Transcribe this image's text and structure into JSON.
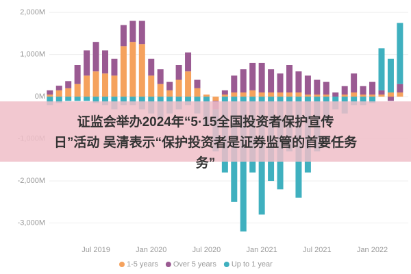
{
  "chart_data": {
    "type": "stacked-bar",
    "categories": [
      null,
      null,
      null,
      null,
      null,
      "Jul 2019",
      null,
      null,
      null,
      null,
      null,
      "Jan 2020",
      null,
      null,
      null,
      null,
      null,
      "Jul 2020",
      null,
      null,
      null,
      null,
      null,
      "Jan 2021",
      null,
      null,
      null,
      null,
      null,
      "Jul 2021",
      null,
      null,
      null,
      null,
      null,
      "Jan 2022",
      null,
      null,
      null
    ],
    "series": [
      {
        "name": "1-5 years",
        "color": "#f5a25d",
        "values": [
          50,
          150,
          200,
          300,
          500,
          600,
          550,
          500,
          1200,
          1300,
          1250,
          500,
          300,
          150,
          400,
          600,
          200,
          50,
          -100,
          50,
          100,
          100,
          150,
          100,
          100,
          100,
          100,
          100,
          50,
          50,
          50,
          0,
          50,
          100,
          50,
          50,
          50,
          100,
          100
        ]
      },
      {
        "name": "Over 5 years",
        "color": "#9a5a92",
        "values": [
          100,
          110,
          170,
          450,
          600,
          700,
          550,
          400,
          500,
          500,
          550,
          400,
          350,
          200,
          350,
          450,
          200,
          0,
          -200,
          100,
          400,
          550,
          650,
          700,
          550,
          450,
          650,
          500,
          450,
          350,
          300,
          100,
          200,
          450,
          200,
          300,
          100,
          -100,
          200
        ]
      },
      {
        "name": "Up to 1 year",
        "color": "#3fb0bf",
        "values": [
          -200,
          -150,
          -100,
          -100,
          -100,
          -150,
          -200,
          -300,
          -200,
          -200,
          -300,
          -400,
          -500,
          -400,
          -300,
          -200,
          -400,
          -700,
          -1000,
          -1800,
          -2500,
          -3200,
          -1800,
          -2800,
          -2000,
          -2200,
          -1300,
          -2400,
          -1800,
          -1300,
          -600,
          -300,
          -400,
          -200,
          -200,
          -150,
          1000,
          800,
          1450
        ]
      }
    ],
    "ylim": [
      -3300,
      2100
    ],
    "yticks": [
      {
        "value": -3000,
        "label": "-3,000M"
      },
      {
        "value": -2000,
        "label": "-2,000M"
      },
      {
        "value": -1000,
        "label": "-1,000M"
      },
      {
        "value": 0,
        "label": "0M"
      },
      {
        "value": 1000,
        "label": "1,000M"
      },
      {
        "value": 2000,
        "label": "2,000M"
      }
    ],
    "grid": true
  },
  "overlay": {
    "lines": [
      "证监会举办2024年“5·15全国投资者保护宣传",
      "日”活动 吴清表示“保护投资者是证券监管的首要任务",
      "务”"
    ]
  }
}
